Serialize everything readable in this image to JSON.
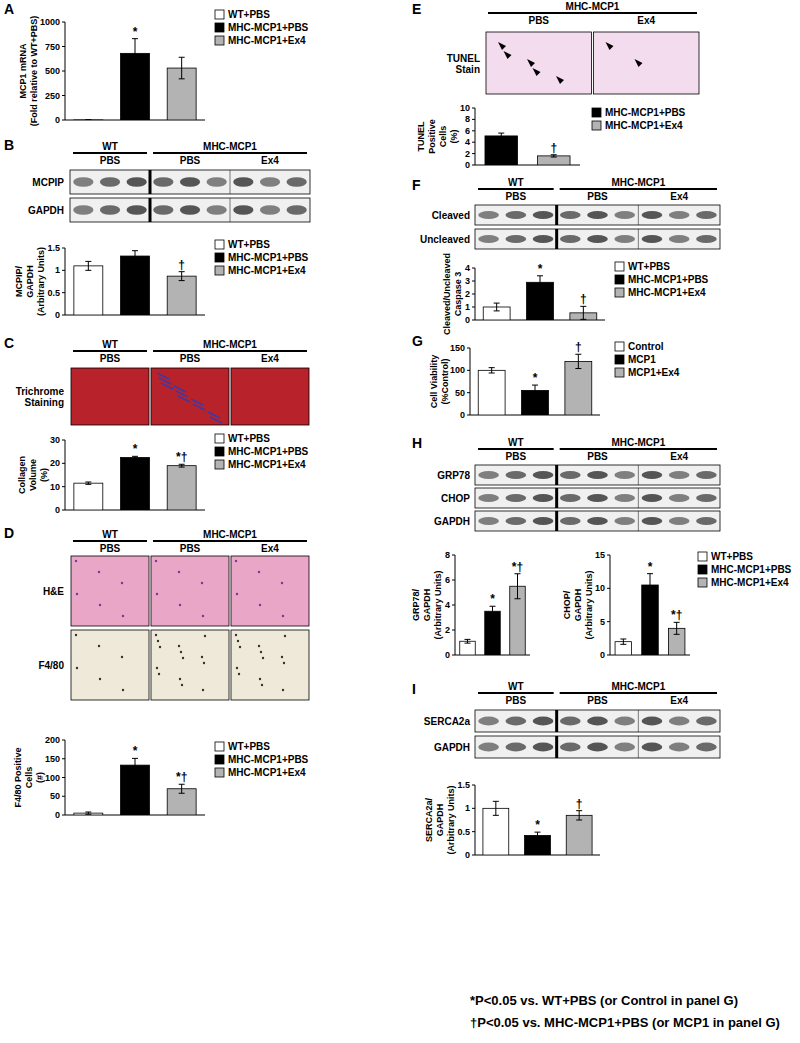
{
  "chart_data": [
    {
      "type": "bar",
      "y_label": [
        "MCP1 mRNA",
        "(Fold relative to WT+PBS)"
      ],
      "categories": [
        "WT+PBS",
        "MHC-MCP1+PBS",
        "MHC-MCP1+Ex4"
      ],
      "values": [
        1,
        680,
        530
      ],
      "errors": [
        0,
        150,
        110
      ],
      "colors": [
        "#ffffff",
        "#000000",
        "#b3b3b3"
      ],
      "annotations": [
        null,
        "*",
        null
      ],
      "ylim": [
        0,
        1000
      ],
      "yticks": [
        0,
        250,
        500,
        750,
        1000
      ],
      "legend": "right",
      "tick_labels": "y"
    },
    {
      "type": "bar",
      "y_label": [
        "MCPIP/",
        "GAPDH",
        "(Arbitrary Units)"
      ],
      "categories": [
        "WT+PBS",
        "MHC-MCP1+PBS",
        "MHC-MCP1+Ex4"
      ],
      "values": [
        1.1,
        1.32,
        0.87
      ],
      "errors": [
        0.1,
        0.12,
        0.1
      ],
      "colors": [
        "#ffffff",
        "#000000",
        "#b3b3b3"
      ],
      "annotations": [
        null,
        null,
        "†"
      ],
      "ylim": [
        0,
        1.5
      ],
      "yticks": [
        0,
        0.5,
        1,
        1.5
      ],
      "legend": "right",
      "tick_labels": "y"
    },
    {
      "type": "bar",
      "y_label": [
        "Collagen",
        "Volume",
        "(%)"
      ],
      "categories": [
        "WT+PBS",
        "MHC-MCP1+PBS",
        "MHC-MCP1+Ex4"
      ],
      "values": [
        11.5,
        22.5,
        19
      ],
      "errors": [
        0.5,
        0.5,
        0.6
      ],
      "colors": [
        "#ffffff",
        "#000000",
        "#b3b3b3"
      ],
      "annotations": [
        null,
        "*",
        "*†"
      ],
      "ylim": [
        0,
        30
      ],
      "yticks": [
        0,
        10,
        20,
        30
      ],
      "legend": "right",
      "tick_labels": "y"
    },
    {
      "type": "bar",
      "y_label": [
        "F4/80 Positive",
        "Cells",
        "(#)"
      ],
      "categories": [
        "WT+PBS",
        "MHC-MCP1+PBS",
        "MHC-MCP1+Ex4"
      ],
      "values": [
        5,
        133,
        70
      ],
      "errors": [
        3,
        18,
        12
      ],
      "colors": [
        "#ffffff",
        "#000000",
        "#b3b3b3"
      ],
      "annotations": [
        null,
        "*",
        "*†"
      ],
      "ylim": [
        0,
        200
      ],
      "yticks": [
        0,
        50,
        100,
        150,
        200
      ],
      "legend": "right",
      "tick_labels": "y"
    },
    {
      "type": "bar",
      "y_label": [
        "TUNEL",
        "Positive",
        "Cells",
        "(%)"
      ],
      "categories": [
        "MHC-MCP1+PBS",
        "MHC-MCP1+Ex4"
      ],
      "values": [
        5.1,
        1.6
      ],
      "errors": [
        0.5,
        0.2
      ],
      "colors": [
        "#000000",
        "#b3b3b3"
      ],
      "annotations": [
        null,
        "†"
      ],
      "ylim": [
        0,
        10
      ],
      "yticks": [
        0,
        2,
        4,
        6,
        8,
        10
      ],
      "legend": "right",
      "tick_labels": "y"
    },
    {
      "type": "bar",
      "y_label": [
        "Cleaved/Uncleaved",
        "Caspase 3"
      ],
      "categories": [
        "WT+PBS",
        "MHC-MCP1+PBS",
        "MHC-MCP1+Ex4"
      ],
      "values": [
        1.0,
        2.9,
        0.55
      ],
      "errors": [
        0.3,
        0.5,
        0.5
      ],
      "colors": [
        "#ffffff",
        "#000000",
        "#b3b3b3"
      ],
      "annotations": [
        null,
        "*",
        "†"
      ],
      "ylim": [
        0,
        4
      ],
      "yticks": [
        0,
        1,
        2,
        3,
        4
      ],
      "legend": "right",
      "tick_labels": "y"
    },
    {
      "type": "bar",
      "y_label": [
        "Cell Viability",
        "(%Control)"
      ],
      "categories": [
        "Control",
        "MCP1",
        "MCP1+Ex4"
      ],
      "values": [
        100,
        55,
        120
      ],
      "errors": [
        6,
        12,
        16
      ],
      "colors": [
        "#ffffff",
        "#000000",
        "#b3b3b3"
      ],
      "annotations": [
        null,
        "*",
        "†"
      ],
      "ylim": [
        0,
        150
      ],
      "yticks": [
        0,
        50,
        100,
        150
      ],
      "legend": "right",
      "tick_labels": "y"
    },
    {
      "type": "bar",
      "y_label": [
        "GRP78/",
        "GAPDH",
        "(Arbitrary Units)"
      ],
      "values": [
        1.1,
        3.5,
        5.5
      ],
      "errors": [
        0.15,
        0.4,
        1.0
      ],
      "colors": [
        "#ffffff",
        "#000000",
        "#b3b3b3"
      ],
      "annotations": [
        null,
        "*",
        "*†"
      ],
      "ylim": [
        0,
        8
      ],
      "yticks": [
        0,
        2,
        4,
        6,
        8
      ],
      "tick_labels": "y"
    },
    {
      "type": "bar",
      "y_label": [
        "CHOP/",
        "GAPDH",
        "(Arbitrary Units)"
      ],
      "categories": [
        "WT+PBS",
        "MHC-MCP1+PBS",
        "MHC-MCP1+Ex4"
      ],
      "values": [
        2,
        10.5,
        4
      ],
      "errors": [
        0.4,
        1.7,
        0.9
      ],
      "colors": [
        "#ffffff",
        "#000000",
        "#b3b3b3"
      ],
      "annotations": [
        null,
        "*",
        "*†"
      ],
      "ylim": [
        0,
        15
      ],
      "yticks": [
        0,
        5,
        10,
        15
      ],
      "legend": "right",
      "tick_labels": "y"
    },
    {
      "type": "bar",
      "y_label": [
        "SERCA2a/",
        "GAPDH",
        "(Arbitrary Units)"
      ],
      "values": [
        1.0,
        0.42,
        0.85
      ],
      "errors": [
        0.15,
        0.07,
        0.1
      ],
      "colors": [
        "#ffffff",
        "#000000",
        "#b3b3b3"
      ],
      "annotations": [
        null,
        "*",
        "†"
      ],
      "ylim": [
        0,
        1.5
      ],
      "yticks": [
        0,
        0.5,
        1,
        1.5
      ],
      "tick_labels": "y"
    }
  ],
  "figure": {
    "panels": [
      {
        "letter": "A"
      },
      {
        "letter": "B",
        "groups": [
          {
            "label": "WT",
            "subs": [
              "PBS"
            ]
          },
          {
            "label": "MHC-MCP1",
            "subs": [
              "PBS",
              "Ex4"
            ]
          }
        ],
        "rows": [
          [
            "MCPIP"
          ],
          [
            "GAPDH"
          ]
        ]
      },
      {
        "letter": "C",
        "groups": [
          {
            "label": "WT",
            "subs": [
              "PBS"
            ]
          },
          {
            "label": "MHC-MCP1",
            "subs": [
              "PBS",
              "Ex4"
            ]
          }
        ],
        "rows": [
          [
            "Trichrome",
            "Staining"
          ]
        ]
      },
      {
        "letter": "D",
        "groups": [
          {
            "label": "WT",
            "subs": [
              "PBS"
            ]
          },
          {
            "label": "MHC-MCP1",
            "subs": [
              "PBS",
              "Ex4"
            ]
          }
        ],
        "rows": [
          [
            "H&E"
          ],
          [
            "F4/80"
          ]
        ]
      },
      {
        "letter": "E",
        "groups": [
          {
            "label": "MHC-MCP1",
            "subs": [
              "PBS",
              "Ex4"
            ]
          }
        ],
        "rows": [
          [
            "TUNEL",
            "Stain"
          ]
        ]
      },
      {
        "letter": "F",
        "groups": [
          {
            "label": "WT",
            "subs": [
              "PBS"
            ]
          },
          {
            "label": "MHC-MCP1",
            "subs": [
              "PBS",
              "Ex4"
            ]
          }
        ],
        "rows": [
          [
            "Cleaved"
          ],
          [
            "Uncleaved"
          ]
        ]
      },
      {
        "letter": "G"
      },
      {
        "letter": "H",
        "groups": [
          {
            "label": "WT",
            "subs": [
              "PBS"
            ]
          },
          {
            "label": "MHC-MCP1",
            "subs": [
              "PBS",
              "Ex4"
            ]
          }
        ],
        "rows": [
          [
            "GRP78"
          ],
          [
            "CHOP"
          ],
          [
            "GAPDH"
          ]
        ]
      },
      {
        "letter": "I",
        "groups": [
          {
            "label": "WT",
            "subs": [
              "PBS"
            ]
          },
          {
            "label": "MHC-MCP1",
            "subs": [
              "PBS",
              "Ex4"
            ]
          }
        ],
        "rows": [
          [
            "SERCA2a"
          ],
          [
            "GAPDH"
          ]
        ]
      }
    ],
    "footnotes": [
      "*P<0.05 vs. WT+PBS (or Control in panel G)",
      "†P<0.05 vs. MHC-MCP1+PBS (or MCP1 in panel G)"
    ]
  }
}
